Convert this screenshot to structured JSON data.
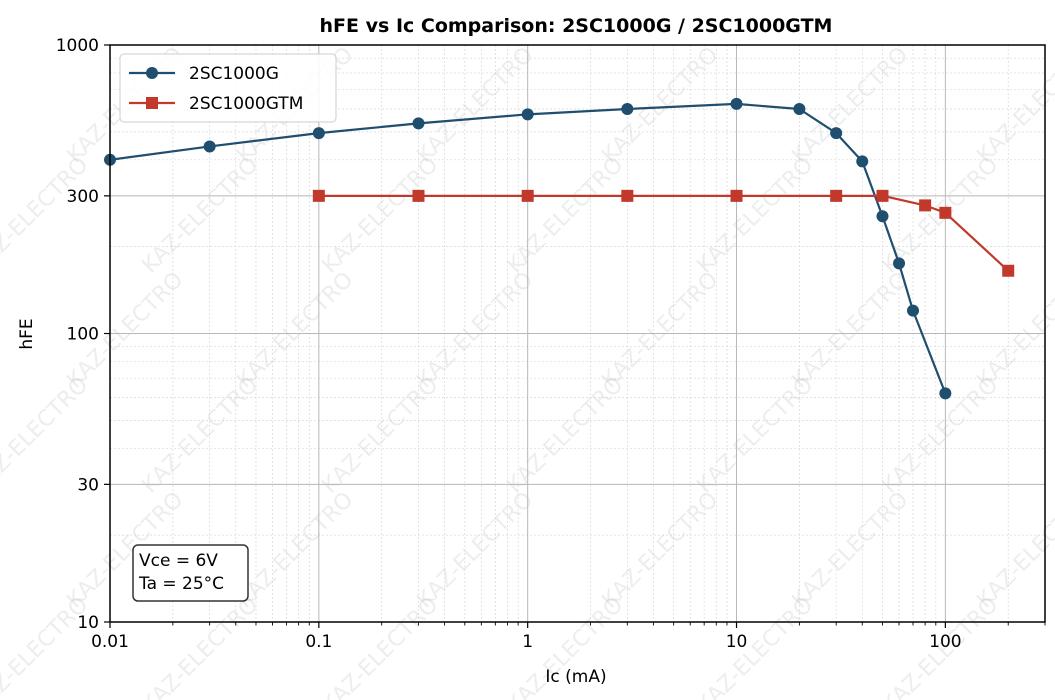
{
  "chart_data": {
    "type": "line",
    "title": "hFE vs Ic Comparison: 2SC1000G / 2SC1000GTM",
    "xlabel": "Ic (mA)",
    "ylabel": "hFE",
    "xscale": "log",
    "yscale": "log",
    "xlim": [
      0.01,
      300
    ],
    "ylim": [
      10,
      1000
    ],
    "xticks": [
      0.01,
      0.1,
      1,
      10,
      100
    ],
    "xtick_labels": [
      "0.01",
      "0.1",
      "1",
      "10",
      "100"
    ],
    "yticks": [
      10,
      30,
      100,
      300,
      1000
    ],
    "ytick_labels": [
      "10",
      "30",
      "100",
      "300",
      "1000"
    ],
    "grid": true,
    "legend_position": "top-left",
    "series": [
      {
        "name": "2SC1000G",
        "color": "#1f4e6e",
        "marker": "circle",
        "x": [
          0.01,
          0.03,
          0.1,
          0.3,
          1,
          3,
          10,
          20,
          30,
          40,
          50,
          60,
          70,
          100
        ],
        "y": [
          400,
          445,
          495,
          535,
          575,
          600,
          625,
          600,
          495,
          395,
          255,
          175,
          120,
          62
        ]
      },
      {
        "name": "2SC1000GTM",
        "color": "#c0392b",
        "marker": "square",
        "x": [
          0.1,
          0.3,
          1,
          3,
          10,
          30,
          50,
          80,
          100,
          200
        ],
        "y": [
          300,
          300,
          300,
          300,
          300,
          300,
          300,
          278,
          262,
          165
        ]
      }
    ],
    "annotation": {
      "lines": [
        "Vce = 6V",
        "Ta = 25°C"
      ],
      "position": "bottom-left"
    },
    "watermark": "KAZ-ELECTRO"
  }
}
